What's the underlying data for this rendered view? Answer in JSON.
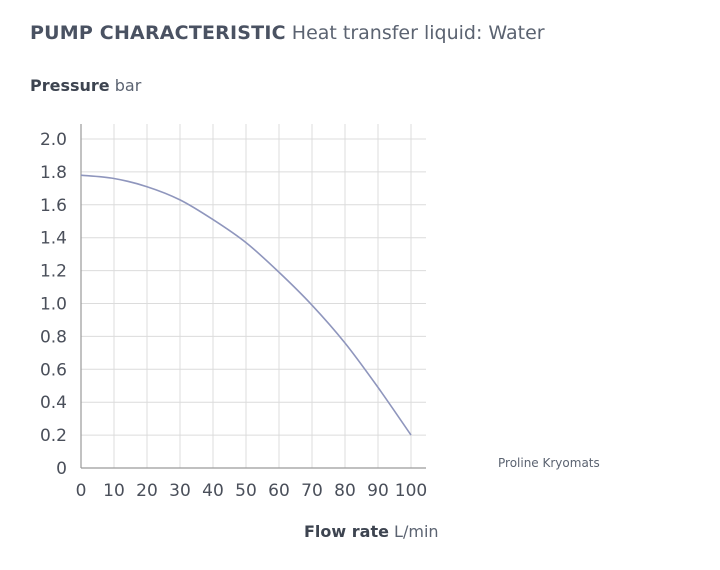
{
  "header": {
    "title": "PUMP CHARACTERISTIC",
    "subtitle": "Heat transfer liquid: Water"
  },
  "axes": {
    "y_label": "Pressure",
    "y_unit": "bar",
    "x_label": "Flow rate",
    "x_unit": "L/min"
  },
  "product_label": "Proline Kryomats",
  "colors": {
    "curve": "#8f96bd",
    "grid": "#dcdcdc",
    "axis": "#9a9a9a",
    "text": "#4a4f5a"
  },
  "chart_data": {
    "type": "line",
    "title": "PUMP CHARACTERISTIC",
    "subtitle": "Heat transfer liquid: Water",
    "xlabel": "Flow rate L/min",
    "ylabel": "Pressure bar",
    "xlim": [
      0,
      100
    ],
    "ylim": [
      0,
      2.0
    ],
    "x_ticks": [
      "0",
      "10",
      "20",
      "30",
      "40",
      "50",
      "60",
      "70",
      "80",
      "90",
      "100"
    ],
    "y_ticks": [
      "0",
      "0.2",
      "0.4",
      "0.6",
      "0.8",
      "1.0",
      "1.2",
      "1.4",
      "1.6",
      "1.8",
      "2.0"
    ],
    "grid": true,
    "series": [
      {
        "x": [
          0,
          10,
          20,
          30,
          40,
          50,
          60,
          70,
          80,
          90,
          100
        ],
        "y": [
          1.78,
          1.76,
          1.71,
          1.63,
          1.51,
          1.37,
          1.19,
          0.99,
          0.76,
          0.49,
          0.2
        ]
      }
    ]
  }
}
